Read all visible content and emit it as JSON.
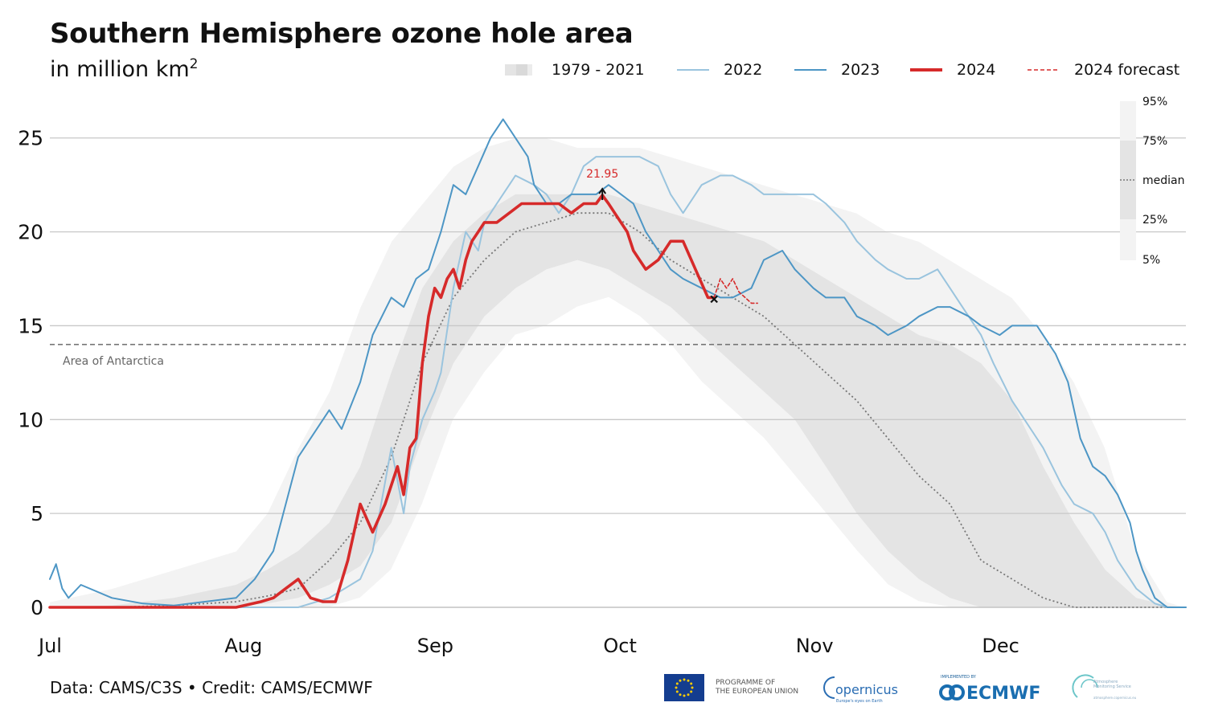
{
  "title": "Southern Hemisphere ozone hole area",
  "subtitle_main": "in million km",
  "subtitle_sup": "2",
  "footer": "Data: CAMS/C3S • Credit: CAMS/ECMWF",
  "logos": {
    "eu_line1": "PROGRAMME OF",
    "eu_line2": "THE EUROPEAN UNION",
    "copernicus": "opernicus",
    "copernicus_tag": "Europe's eyes on Earth",
    "ecmwf_top": "IMPLEMENTED BY",
    "ecmwf": "ECMWF",
    "ams_line1": "Atmosphere",
    "ams_line2": "Monitoring Service",
    "ams_line3": "atmosphere.copernicus.eu"
  },
  "colors": {
    "2022": "#9ac4de",
    "2023": "#4d96c5",
    "2024": "#d62a2a",
    "forecast": "#d62a2a",
    "band_5_95": "#f3f3f3",
    "band_25_75": "#e4e4e4",
    "median": "#777777",
    "grid": "#c8c8c8",
    "antarctica": "#777777"
  },
  "chart_data": {
    "type": "line",
    "x_start": "Jul 1",
    "xlim": [
      "Jul 1",
      "Dec 31"
    ],
    "ylim": [
      0,
      27
    ],
    "yticks": [
      0,
      5,
      10,
      15,
      20,
      25
    ],
    "xticks": [
      {
        "label": "Jul",
        "day": 0
      },
      {
        "label": "Aug",
        "day": 31
      },
      {
        "label": "Sep",
        "day": 62
      },
      {
        "label": "Oct",
        "day": 92
      },
      {
        "label": "Nov",
        "day": 123
      },
      {
        "label": "Dec",
        "day": 153
      }
    ],
    "grid": "horizontal",
    "legend_position": "top-right",
    "legend": [
      {
        "label": "1979 - 2021",
        "kind": "band"
      },
      {
        "label": "2022",
        "kind": "line",
        "series": "2022"
      },
      {
        "label": "2023",
        "kind": "line",
        "series": "2023"
      },
      {
        "label": "2024",
        "kind": "thick",
        "series": "2024"
      },
      {
        "label": "2024 forecast",
        "kind": "dashed",
        "series": "forecast"
      }
    ],
    "percentile_legend": [
      "95%",
      "75%",
      "median",
      "25%",
      "5%"
    ],
    "reference_line": {
      "value": 14,
      "label": "Area of Antarctica"
    },
    "annotation": {
      "label": "21.95",
      "x": 89,
      "y": 21.95
    },
    "climatology": {
      "x": [
        0,
        10,
        20,
        30,
        35,
        40,
        45,
        50,
        55,
        60,
        65,
        70,
        75,
        80,
        85,
        90,
        95,
        100,
        105,
        110,
        115,
        120,
        125,
        130,
        135,
        140,
        145,
        150,
        155,
        160,
        165,
        170,
        175,
        180,
        183
      ],
      "p95": [
        0.3,
        1.0,
        2.0,
        3.0,
        5.0,
        8.5,
        11.5,
        16.0,
        19.5,
        21.5,
        23.5,
        24.5,
        25.0,
        25.0,
        24.5,
        24.5,
        24.5,
        24.0,
        23.5,
        23.0,
        22.5,
        22.0,
        21.5,
        21.0,
        20.0,
        19.5,
        18.5,
        17.5,
        16.5,
        14.5,
        12.0,
        8.5,
        3.0,
        0.3,
        0
      ],
      "p75": [
        0,
        0.1,
        0.5,
        1.2,
        2.0,
        3.0,
        4.5,
        7.5,
        12.5,
        17.0,
        19.5,
        21.0,
        22.0,
        22.0,
        22.0,
        22.0,
        21.5,
        21.0,
        20.5,
        20.0,
        19.5,
        18.5,
        17.5,
        16.5,
        15.5,
        14.5,
        14.0,
        13.0,
        11.0,
        7.5,
        4.5,
        2.0,
        0.5,
        0.1,
        0
      ],
      "median": [
        0,
        0,
        0.1,
        0.3,
        0.6,
        1.0,
        2.5,
        4.5,
        8.0,
        13.0,
        16.5,
        18.5,
        20.0,
        20.5,
        21.0,
        21.0,
        20.0,
        18.5,
        17.5,
        16.5,
        15.5,
        14.0,
        12.5,
        11.0,
        9.0,
        7.0,
        5.5,
        2.5,
        1.5,
        0.5,
        0,
        0,
        0,
        0,
        0
      ],
      "p25": [
        0,
        0,
        0,
        0.1,
        0.2,
        0.5,
        1.2,
        2.2,
        4.5,
        9.0,
        13.0,
        15.5,
        17.0,
        18.0,
        18.5,
        18.0,
        17.0,
        16.0,
        14.5,
        13.0,
        11.5,
        10.0,
        7.5,
        5.0,
        3.0,
        1.5,
        0.5,
        0,
        0,
        0,
        0,
        0,
        0,
        0,
        0
      ],
      "p5": [
        0,
        0,
        0,
        0,
        0,
        0,
        0,
        0.5,
        2.0,
        5.5,
        10.0,
        12.5,
        14.5,
        15.0,
        16.0,
        16.5,
        15.5,
        14.0,
        12.0,
        10.5,
        9.0,
        7.0,
        5.0,
        3.0,
        1.2,
        0.3,
        0,
        0,
        0,
        0,
        0,
        0,
        0,
        0,
        0
      ]
    },
    "series": [
      {
        "name": "2022",
        "x": [
          0,
          10,
          20,
          30,
          35,
          38,
          40,
          45,
          50,
          52,
          55,
          57,
          58,
          60,
          62,
          63,
          65,
          67,
          69,
          70,
          72,
          74,
          75,
          78,
          80,
          82,
          84,
          86,
          88,
          90,
          92,
          95,
          98,
          100,
          102,
          105,
          108,
          110,
          113,
          115,
          118,
          120,
          123,
          125,
          128,
          130,
          133,
          135,
          138,
          140,
          143,
          145,
          147,
          150,
          152,
          155,
          158,
          160,
          163,
          165,
          168,
          170,
          172,
          175,
          178,
          180,
          183
        ],
        "y": [
          0,
          0,
          0,
          0,
          0,
          0,
          0,
          0.5,
          1.5,
          3.0,
          8.5,
          5.0,
          7.5,
          10.0,
          11.5,
          12.5,
          17.0,
          20.0,
          19.0,
          20.5,
          21.5,
          22.5,
          23.0,
          22.5,
          22.0,
          21.0,
          22.0,
          23.5,
          24.0,
          24.0,
          24.0,
          24.0,
          23.5,
          22.0,
          21.0,
          22.5,
          23.0,
          23.0,
          22.5,
          22.0,
          22.0,
          22.0,
          22.0,
          21.5,
          20.5,
          19.5,
          18.5,
          18.0,
          17.5,
          17.5,
          18.0,
          17.0,
          16.0,
          14.5,
          13.0,
          11.0,
          9.5,
          8.5,
          6.5,
          5.5,
          5.0,
          4.0,
          2.5,
          1.0,
          0.2,
          0,
          0
        ]
      },
      {
        "name": "2023",
        "x": [
          0,
          1,
          2,
          3,
          5,
          10,
          15,
          20,
          25,
          30,
          33,
          36,
          40,
          42,
          45,
          47,
          50,
          52,
          55,
          57,
          59,
          61,
          63,
          65,
          67,
          69,
          71,
          73,
          75,
          77,
          78,
          80,
          82,
          84,
          86,
          88,
          90,
          92,
          94,
          96,
          98,
          100,
          102,
          105,
          108,
          110,
          113,
          115,
          118,
          120,
          123,
          125,
          128,
          130,
          133,
          135,
          138,
          140,
          143,
          145,
          148,
          150,
          153,
          155,
          157,
          159,
          160,
          162,
          164,
          166,
          168,
          170,
          172,
          174,
          175,
          176,
          178,
          180,
          183
        ],
        "y": [
          1.5,
          2.3,
          1.0,
          0.5,
          1.2,
          0.5,
          0.2,
          0.1,
          0.3,
          0.5,
          1.5,
          3.0,
          8.0,
          9.0,
          10.5,
          9.5,
          12.0,
          14.5,
          16.5,
          16.0,
          17.5,
          18.0,
          20.0,
          22.5,
          22.0,
          23.5,
          25.0,
          26.0,
          25.0,
          24.0,
          22.5,
          21.5,
          21.5,
          22.0,
          22.0,
          22.0,
          22.5,
          22.0,
          21.5,
          20.0,
          19.0,
          18.0,
          17.5,
          17.0,
          16.5,
          16.5,
          17.0,
          18.5,
          19.0,
          18.0,
          17.0,
          16.5,
          16.5,
          15.5,
          15.0,
          14.5,
          15.0,
          15.5,
          16.0,
          16.0,
          15.5,
          15.0,
          14.5,
          15.0,
          15.0,
          15.0,
          14.5,
          13.5,
          12.0,
          9.0,
          7.5,
          7.0,
          6.0,
          4.5,
          3.0,
          2.0,
          0.5,
          0,
          0
        ]
      },
      {
        "name": "2024",
        "x": [
          0,
          10,
          20,
          30,
          34,
          36,
          38,
          40,
          42,
          44,
          46,
          48,
          50,
          52,
          54,
          56,
          57,
          58,
          59,
          60,
          61,
          62,
          63,
          64,
          65,
          66,
          67,
          68,
          69,
          70,
          72,
          74,
          76,
          78,
          80,
          82,
          84,
          86,
          88,
          89,
          90,
          91,
          93,
          94,
          95,
          96,
          98,
          100,
          102,
          104,
          106,
          107
        ],
        "y": [
          0,
          0,
          0,
          0,
          0.3,
          0.5,
          1.0,
          1.5,
          0.5,
          0.3,
          0.3,
          2.5,
          5.5,
          4.0,
          5.5,
          7.5,
          6.0,
          8.5,
          9.0,
          13.0,
          15.5,
          17.0,
          16.5,
          17.5,
          18.0,
          17.0,
          18.5,
          19.5,
          20.0,
          20.5,
          20.5,
          21.0,
          21.5,
          21.5,
          21.5,
          21.5,
          21.0,
          21.5,
          21.5,
          21.95,
          21.5,
          21.0,
          20.0,
          19.0,
          18.5,
          18.0,
          18.5,
          19.5,
          19.5,
          18.0,
          16.5,
          16.5
        ]
      },
      {
        "name": "2024 forecast",
        "x": [
          107,
          108,
          109,
          110,
          111,
          112,
          113,
          114
        ],
        "y": [
          16.5,
          17.5,
          17.0,
          17.5,
          16.8,
          16.5,
          16.2,
          16.2
        ]
      }
    ]
  }
}
